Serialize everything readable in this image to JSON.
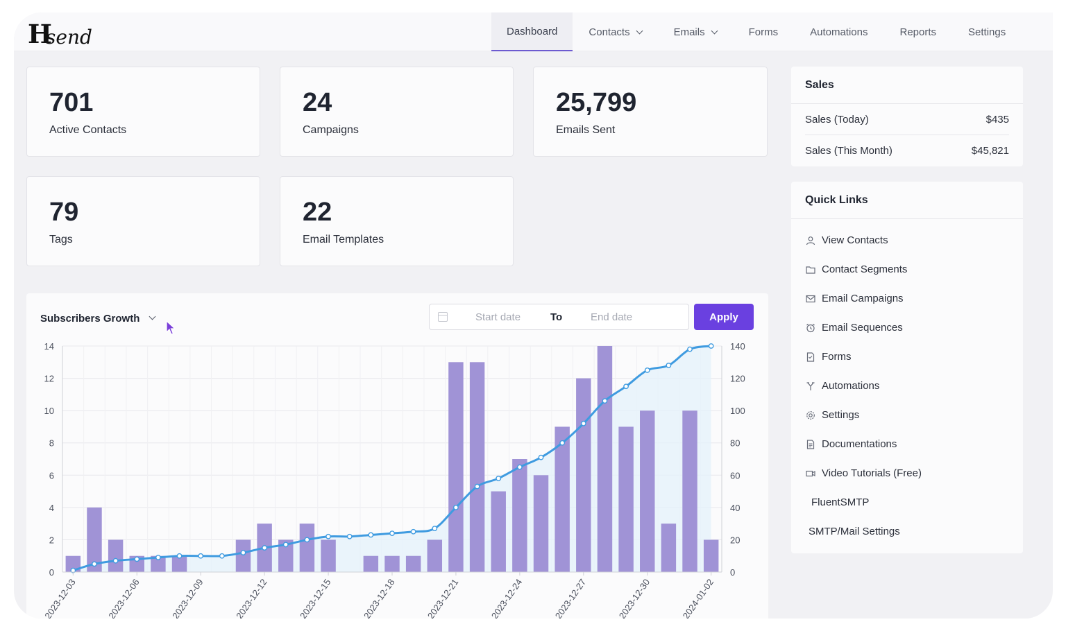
{
  "logo": {
    "mark": "H",
    "text": "send"
  },
  "nav": [
    {
      "label": "Dashboard",
      "active": true,
      "dropdown": false
    },
    {
      "label": "Contacts",
      "active": false,
      "dropdown": true
    },
    {
      "label": "Emails",
      "active": false,
      "dropdown": true
    },
    {
      "label": "Forms",
      "active": false,
      "dropdown": false
    },
    {
      "label": "Automations",
      "active": false,
      "dropdown": false
    },
    {
      "label": "Reports",
      "active": false,
      "dropdown": false
    },
    {
      "label": "Settings",
      "active": false,
      "dropdown": false
    }
  ],
  "stats": [
    {
      "value": "701",
      "label": "Active Contacts"
    },
    {
      "value": "24",
      "label": "Campaigns"
    },
    {
      "value": "25,799",
      "label": "Emails Sent"
    },
    {
      "value": "79",
      "label": "Tags"
    },
    {
      "value": "22",
      "label": "Email Templates"
    }
  ],
  "sales": {
    "title": "Sales",
    "rows": [
      {
        "label": "Sales (Today)",
        "value": "$435"
      },
      {
        "label": "Sales (This Month)",
        "value": "$45,821"
      }
    ]
  },
  "quick_links": {
    "title": "Quick Links",
    "items": [
      {
        "label": "View Contacts",
        "icon": "user-icon"
      },
      {
        "label": "Contact Segments",
        "icon": "folder-icon"
      },
      {
        "label": "Email Campaigns",
        "icon": "envelope-icon"
      },
      {
        "label": "Email Sequences",
        "icon": "alarm-clock-icon"
      },
      {
        "label": "Forms",
        "icon": "document-icon"
      },
      {
        "label": "Automations",
        "icon": "flow-icon"
      },
      {
        "label": "Settings",
        "icon": "gear-icon"
      },
      {
        "label": "Documentations",
        "icon": "doc-lines-icon"
      },
      {
        "label": "Video Tutorials (Free)",
        "icon": "video-camera-icon"
      },
      {
        "label": "FluentSMTP",
        "icon": ""
      },
      {
        "label": "SMTP/Mail Settings",
        "icon": ""
      }
    ]
  },
  "growth": {
    "title": "Subscribers Growth",
    "start_placeholder": "Start date",
    "to_label": "To",
    "end_placeholder": "End date",
    "apply_label": "Apply"
  },
  "colors": {
    "accent": "#6a40e0",
    "bar": "#a093d6",
    "line": "#3f9be0",
    "area": "#e4f1fb"
  },
  "chart_data": {
    "type": "bar",
    "title": "Subscribers Growth",
    "categories": [
      "2023-12-03",
      "2023-12-04",
      "2023-12-05",
      "2023-12-06",
      "2023-12-07",
      "2023-12-08",
      "2023-12-09",
      "2023-12-10",
      "2023-12-11",
      "2023-12-12",
      "2023-12-13",
      "2023-12-14",
      "2023-12-15",
      "2023-12-16",
      "2023-12-17",
      "2023-12-18",
      "2023-12-19",
      "2023-12-20",
      "2023-12-21",
      "2023-12-22",
      "2023-12-23",
      "2023-12-24",
      "2023-12-25",
      "2023-12-26",
      "2023-12-27",
      "2023-12-28",
      "2023-12-29",
      "2023-12-30",
      "2023-12-31",
      "2024-01-01",
      "2024-01-02"
    ],
    "tick_labels": [
      "2023-12-03",
      "2023-12-06",
      "2023-12-09",
      "2023-12-12",
      "2023-12-15",
      "2023-12-18",
      "2023-12-21",
      "2023-12-24",
      "2023-12-27",
      "2023-12-30",
      "2024-01-02"
    ],
    "series": [
      {
        "type": "bar",
        "axis": "left",
        "values": [
          1,
          4,
          2,
          1,
          1,
          1,
          0,
          0,
          2,
          3,
          2,
          3,
          2,
          0,
          1,
          1,
          1,
          2,
          13,
          13,
          5,
          7,
          6,
          9,
          12,
          14,
          9,
          10,
          3,
          10,
          2
        ]
      },
      {
        "type": "line",
        "axis": "right",
        "values": [
          1,
          5,
          7,
          8,
          9,
          10,
          10,
          10,
          12,
          15,
          17,
          20,
          22,
          22,
          23,
          24,
          25,
          27,
          40,
          53,
          58,
          65,
          71,
          80,
          92,
          106,
          115,
          125,
          128,
          138,
          140
        ]
      }
    ],
    "ylim": [
      0,
      14
    ],
    "yticks": [
      0,
      2,
      4,
      6,
      8,
      10,
      12,
      14
    ],
    "y2lim": [
      0,
      140
    ],
    "y2ticks": [
      0,
      20,
      40,
      60,
      80,
      100,
      120,
      140
    ],
    "grid": true,
    "legend": "none"
  }
}
